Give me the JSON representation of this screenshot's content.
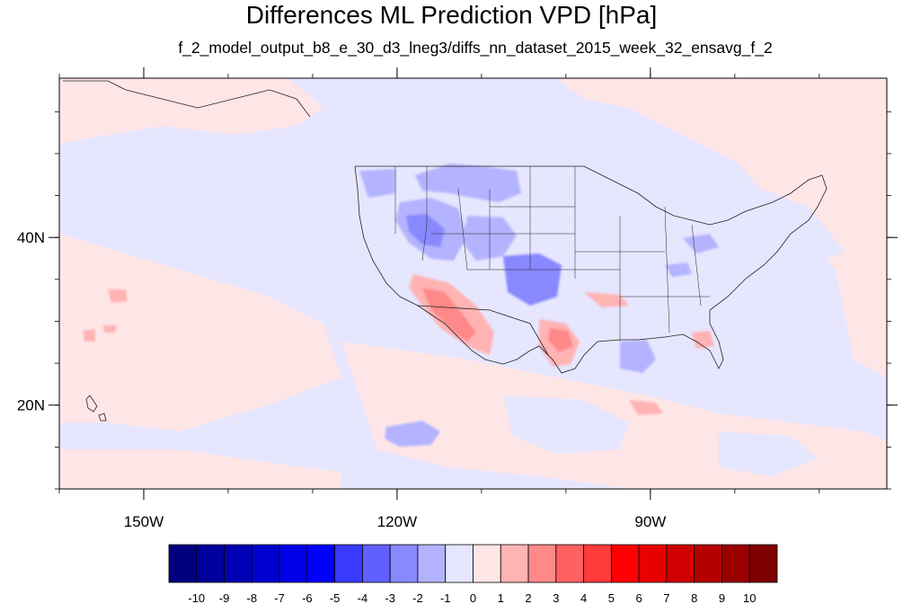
{
  "title": "Differences ML Prediction VPD [hPa]",
  "subtitle": "f_2_model_output_b8_e_30_d3_lneg3/diffs_nn_dataset_2015_week_32_ensavg_f_2",
  "map": {
    "lon_range": [
      -160,
      -62
    ],
    "lat_range": [
      10,
      59
    ],
    "ocean_base_color": "#e6e6ff",
    "land_base_color": "#ffe6e6",
    "x_ticks": [
      {
        "lon": -150,
        "label": "150W"
      },
      {
        "lon": -120,
        "label": "120W"
      },
      {
        "lon": -90,
        "label": "90W"
      }
    ],
    "y_ticks": [
      {
        "lat": 40,
        "label": "40N"
      },
      {
        "lat": 20,
        "label": "20N"
      }
    ],
    "minor_x_ticks": [
      -160,
      -150,
      -140,
      -130,
      -120,
      -110,
      -100,
      -90,
      -80,
      -70
    ],
    "minor_y_ticks": [
      10,
      15,
      20,
      25,
      30,
      35,
      40,
      45,
      50,
      55
    ]
  },
  "colorbar": {
    "colors": [
      "#00007f",
      "#00009a",
      "#0000b5",
      "#0000d0",
      "#0000e8",
      "#0000ff",
      "#3a3aff",
      "#6060ff",
      "#8888ff",
      "#b3b3ff",
      "#e6e6ff",
      "#ffe6e6",
      "#ffb3b3",
      "#ff8888",
      "#ff6060",
      "#ff3a3a",
      "#ff0000",
      "#e80000",
      "#d00000",
      "#b50000",
      "#9a0000",
      "#7f0000"
    ],
    "labels": [
      "-10",
      "-9",
      "-8",
      "-7",
      "-6",
      "-5",
      "-4",
      "-3",
      "-2",
      "-1",
      "0",
      "1",
      "2",
      "3",
      "4",
      "5",
      "6",
      "7",
      "8",
      "9",
      "10"
    ]
  }
}
